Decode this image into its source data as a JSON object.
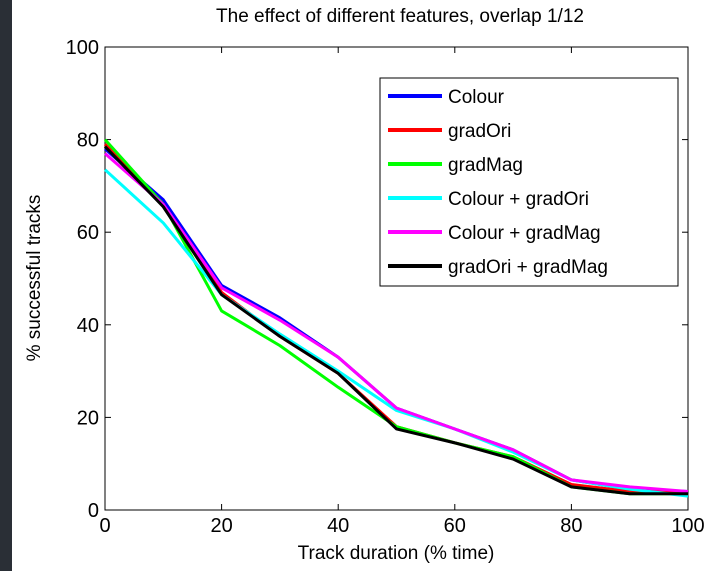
{
  "chart_data": {
    "type": "line",
    "title": "The effect of different features, overlap 1/12",
    "x_label": "Track duration (% time)",
    "y_label": "% successful tracks",
    "x": [
      0,
      10,
      20,
      30,
      40,
      50,
      60,
      70,
      80,
      90,
      100
    ],
    "series": [
      {
        "name": "Colour",
        "color": "#0000ff",
        "values": [
          78,
          67,
          48.5,
          41.5,
          33,
          22,
          17.5,
          13,
          6.5,
          4.5,
          4
        ]
      },
      {
        "name": "gradOri",
        "color": "#ff0000",
        "values": [
          79,
          66,
          47,
          37.5,
          29.5,
          18,
          14.5,
          11.5,
          5.5,
          4,
          4
        ]
      },
      {
        "name": "gradMag",
        "color": "#00ff00",
        "values": [
          80,
          66,
          43,
          35.5,
          26.5,
          18,
          14.5,
          11.5,
          5,
          3.5,
          3.5
        ]
      },
      {
        "name": "Colour + gradOri",
        "color": "#00ffff",
        "values": [
          73.5,
          62,
          46.5,
          38,
          30,
          21.5,
          17.5,
          12.5,
          6.5,
          4.5,
          3
        ]
      },
      {
        "name": "Colour + gradMag",
        "color": "#ff00ff",
        "values": [
          77,
          66,
          48,
          41,
          33,
          22,
          17.5,
          13,
          6.5,
          5,
          4
        ]
      },
      {
        "name": "gradOri + gradMag",
        "color": "#000000",
        "values": [
          78.5,
          65.5,
          46.5,
          37.5,
          29.5,
          17.5,
          14.5,
          11,
          5,
          3.5,
          3.5
        ]
      }
    ],
    "xlim": [
      0,
      100
    ],
    "xticks": [
      0,
      20,
      40,
      60,
      80,
      100
    ],
    "ylim": [
      0,
      100
    ],
    "yticks": [
      0,
      20,
      40,
      60,
      80,
      100
    ],
    "legend": "upper right",
    "grid": false
  }
}
